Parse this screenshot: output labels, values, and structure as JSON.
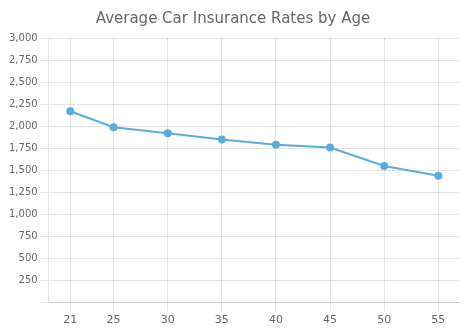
{
  "chart_data": {
    "type": "line",
    "title": "Average Car Insurance Rates by Age",
    "x": [
      21,
      25,
      30,
      35,
      40,
      45,
      50,
      55
    ],
    "values": [
      2170,
      1990,
      1920,
      1850,
      1790,
      1760,
      1550,
      1440
    ],
    "color": "#5aace0",
    "marker": "circle",
    "xlim": [
      19,
      57
    ],
    "xticks": [
      21,
      25,
      30,
      35,
      40,
      45,
      50,
      55
    ],
    "ylim": [
      0,
      3000
    ],
    "yticks": [
      {
        "value": 0,
        "label": ""
      },
      250,
      500,
      750,
      {
        "value": 1000,
        "label": "1,000"
      },
      {
        "value": 1250,
        "label": "1,250"
      },
      {
        "value": 1500,
        "label": "1,500"
      },
      {
        "value": 1750,
        "label": "1,750"
      },
      {
        "value": 2000,
        "label": "2,000"
      },
      {
        "value": 2250,
        "label": "2,250"
      },
      {
        "value": 2500,
        "label": "2,500"
      },
      {
        "value": 2750,
        "label": "2,750"
      },
      {
        "value": 3000,
        "label": "3,000"
      }
    ],
    "grid": true
  }
}
